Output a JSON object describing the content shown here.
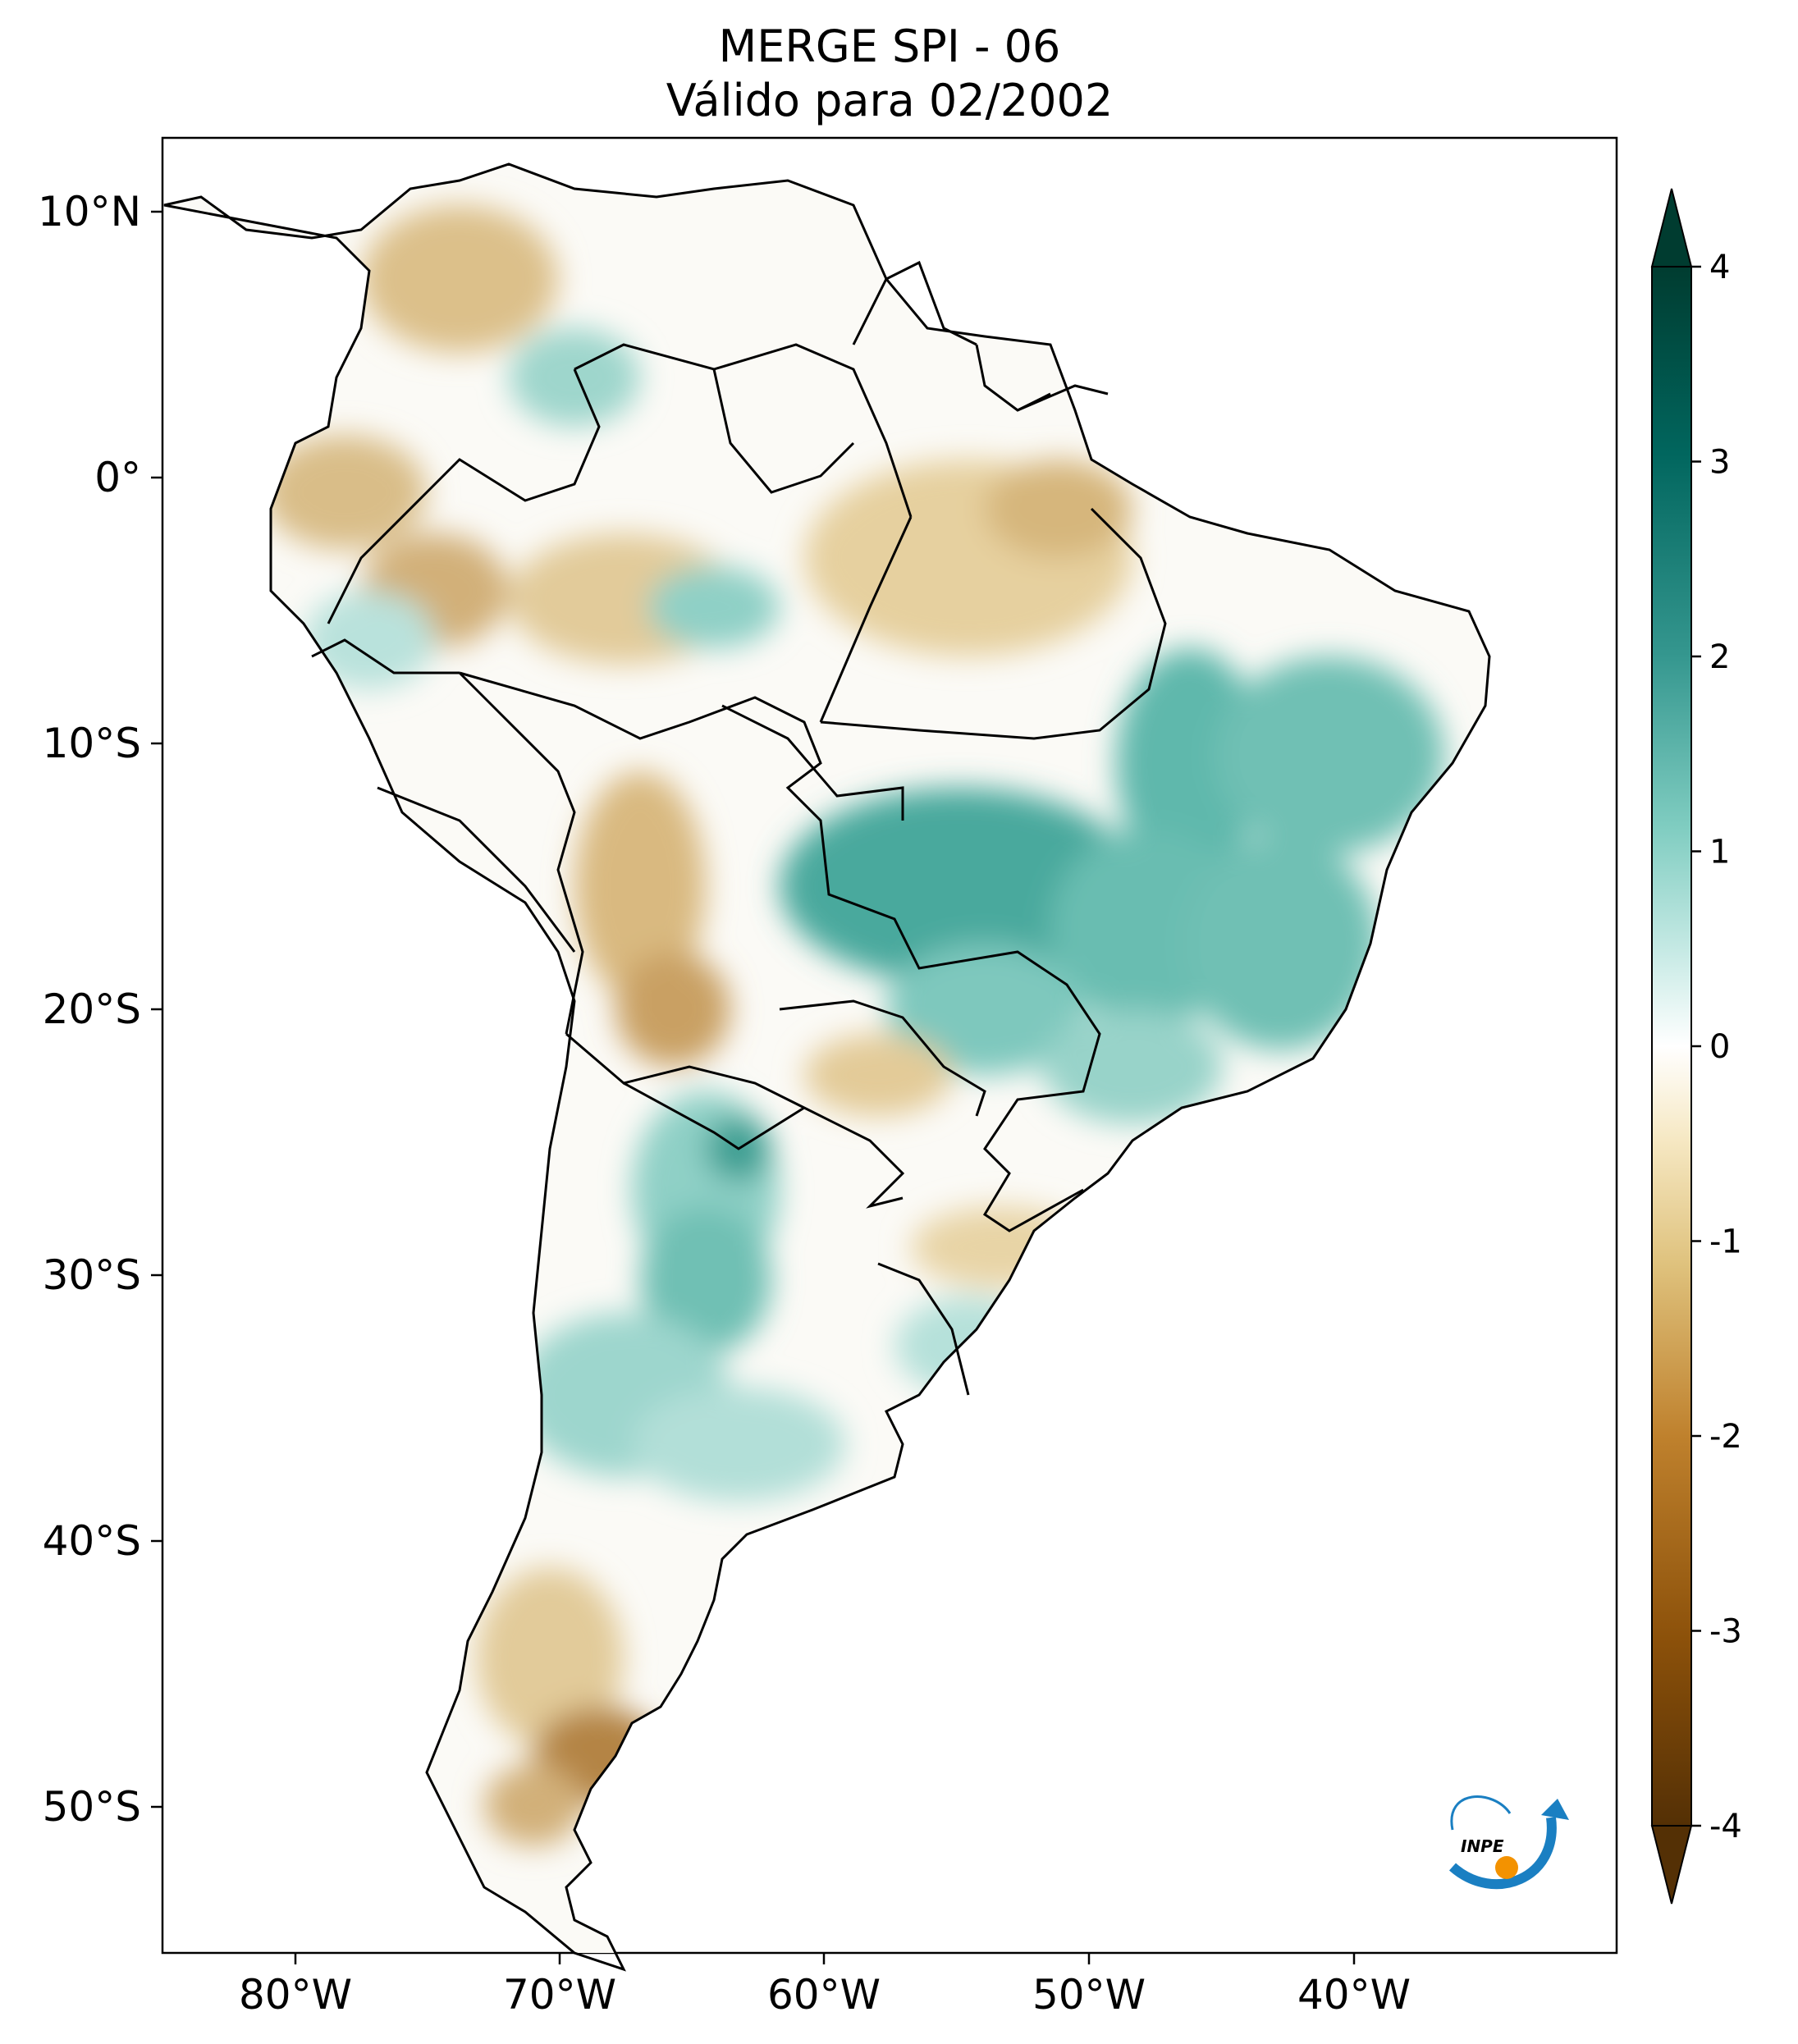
{
  "title": {
    "line1": "MERGE   SPI - 06",
    "line2": "Válido para 02/2002"
  },
  "map": {
    "lat_labels": [
      "10°N",
      "0°",
      "10°S",
      "20°S",
      "30°S",
      "40°S",
      "50°S"
    ],
    "lat_values": [
      10,
      0,
      -10,
      -20,
      -30,
      -40,
      -50
    ],
    "lon_labels": [
      "80°W",
      "70°W",
      "60°W",
      "50°W",
      "40°W"
    ],
    "lon_values": [
      -80,
      -70,
      -60,
      -50,
      -40
    ],
    "extent": {
      "lon": [
        -85.0,
        -30.0
      ],
      "lat": [
        -55.5,
        12.5
      ]
    }
  },
  "colorbar": {
    "ticks": [
      "4",
      "3",
      "2",
      "1",
      "0",
      "-1",
      "-2",
      "-3",
      "-4"
    ],
    "tick_values": [
      4,
      3,
      2,
      1,
      0,
      -1,
      -2,
      -3,
      -4
    ],
    "range": [
      -4,
      4
    ],
    "extend": "both",
    "colors": [
      "#543005",
      "#8c510a",
      "#bf812d",
      "#dfc27d",
      "#f6e8c3",
      "#ffffff",
      "#c7eae5",
      "#80cdc1",
      "#35978f",
      "#01665e",
      "#003c30"
    ]
  },
  "logo": {
    "text": "INPE"
  }
}
